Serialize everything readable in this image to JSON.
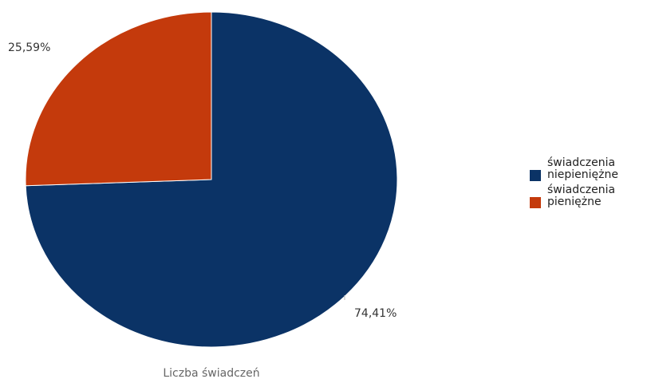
{
  "chart_data": {
    "type": "pie",
    "title": "",
    "caption": "Liczba świadczeń",
    "slices": [
      {
        "name": "świadczenia niepieniężne",
        "legend_lines": [
          "świadczenia",
          "niepieniężne"
        ],
        "value": 74.41,
        "label": "74,41%",
        "color": "#0b3366"
      },
      {
        "name": "świadczenia pieniężne",
        "legend_lines": [
          "świadczenia",
          "pieniężne"
        ],
        "value": 25.59,
        "label": "25,59%",
        "color": "#c43a0c"
      }
    ],
    "legend_position": "right"
  }
}
